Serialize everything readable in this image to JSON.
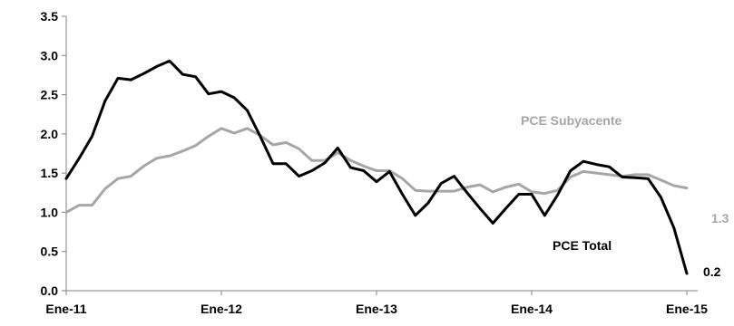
{
  "chart_data": {
    "type": "line",
    "title": "",
    "xlabel": "",
    "ylabel": "",
    "ylim": [
      0,
      3.5
    ],
    "y_ticks": [
      "0.0",
      "0.5",
      "1.0",
      "1.5",
      "2.0",
      "2.5",
      "3.0",
      "3.5"
    ],
    "x_ticks": [
      "Ene-11",
      "Ene-12",
      "Ene-13",
      "Ene-14",
      "Ene-15"
    ],
    "x_tick_month_index": [
      0,
      12,
      24,
      36,
      48
    ],
    "grid": false,
    "legend": "inline labels",
    "series": [
      {
        "name": "PCE Total",
        "color": "#000000",
        "end_label": "0.2",
        "values": [
          1.43,
          1.69,
          1.97,
          2.42,
          2.71,
          2.69,
          2.77,
          2.86,
          2.93,
          2.76,
          2.73,
          2.51,
          2.54,
          2.46,
          2.3,
          1.97,
          1.62,
          1.62,
          1.46,
          1.53,
          1.63,
          1.82,
          1.57,
          1.53,
          1.39,
          1.52,
          1.23,
          0.96,
          1.12,
          1.37,
          1.46,
          1.25,
          1.05,
          0.86,
          1.05,
          1.23,
          1.23,
          0.96,
          1.22,
          1.53,
          1.65,
          1.61,
          1.58,
          1.45,
          1.44,
          1.43,
          1.19,
          0.8,
          0.22
        ]
      },
      {
        "name": "PCE Subyacente",
        "color": "#a6a6a6",
        "end_label": "1.3",
        "values": [
          1.0,
          1.09,
          1.09,
          1.3,
          1.43,
          1.46,
          1.59,
          1.69,
          1.72,
          1.78,
          1.85,
          1.97,
          2.07,
          2.01,
          2.07,
          1.98,
          1.86,
          1.89,
          1.81,
          1.66,
          1.66,
          1.76,
          1.66,
          1.59,
          1.53,
          1.53,
          1.43,
          1.28,
          1.27,
          1.27,
          1.27,
          1.32,
          1.35,
          1.26,
          1.32,
          1.36,
          1.26,
          1.24,
          1.28,
          1.45,
          1.52,
          1.5,
          1.48,
          1.46,
          1.48,
          1.48,
          1.41,
          1.34,
          1.31
        ]
      }
    ]
  }
}
